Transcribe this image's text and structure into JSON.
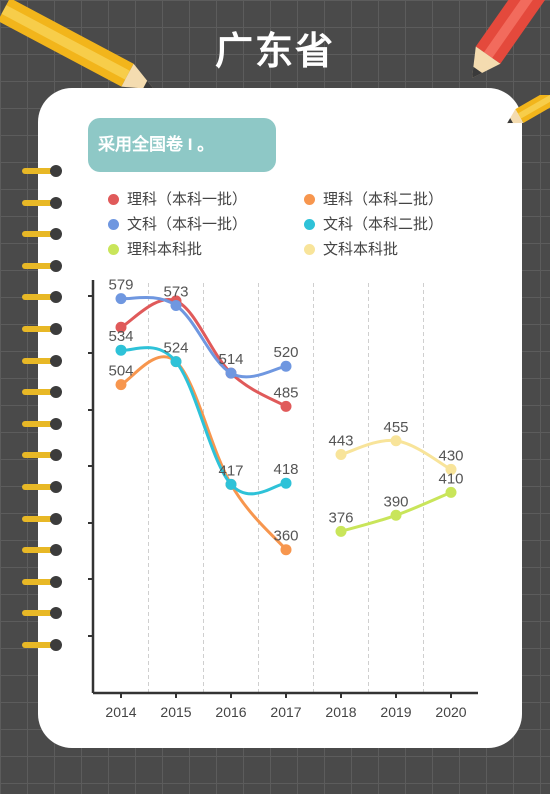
{
  "page": {
    "title": "广东省",
    "badge": "采用全国卷 I 。"
  },
  "colors": {
    "background": "#4a4a4a",
    "badge": "#8ec8c6",
    "ring": "#e8b826"
  },
  "decorations": [
    "pencil-icon",
    "pencil-icon",
    "pencil-icon"
  ],
  "chart_data": {
    "type": "line",
    "title": "",
    "xlabel": "",
    "ylabel": "",
    "legend_position": "top",
    "grid": "vertical-dashed",
    "ylim": [
      235,
      600
    ],
    "categories": [
      "2014",
      "2015",
      "2016",
      "2017",
      "2018",
      "2019",
      "2020"
    ],
    "series": [
      {
        "name": "理科（本科一批）",
        "color": "#e05a5a",
        "values": [
          554,
          577,
          514,
          485,
          null,
          null,
          null
        ],
        "labels": [
          null,
          null,
          null,
          "485",
          null,
          null,
          null
        ]
      },
      {
        "name": "理科（本科二批）",
        "color": "#f7964e",
        "values": [
          504,
          524,
          417,
          360,
          null,
          null,
          null
        ],
        "labels": [
          "504",
          null,
          null,
          "360",
          null,
          null,
          null
        ]
      },
      {
        "name": "文科（本科一批）",
        "color": "#6f97e0",
        "values": [
          579,
          573,
          514,
          520,
          null,
          null,
          null
        ],
        "labels": [
          "579",
          "573",
          "514",
          "520",
          null,
          null,
          null
        ]
      },
      {
        "name": "文科（本科二批）",
        "color": "#2ec2d8",
        "values": [
          534,
          524,
          417,
          418,
          null,
          null,
          null
        ],
        "labels": [
          "534",
          "524",
          "417",
          "418",
          null,
          null,
          null
        ]
      },
      {
        "name": "理科本科批",
        "color": "#c9e55a",
        "values": [
          null,
          null,
          null,
          null,
          376,
          390,
          410
        ],
        "labels": [
          null,
          null,
          null,
          null,
          "376",
          "390",
          "410"
        ]
      },
      {
        "name": "文科本科批",
        "color": "#f8e49a",
        "values": [
          null,
          null,
          null,
          null,
          443,
          455,
          430
        ],
        "labels": [
          null,
          null,
          null,
          null,
          "443",
          "455",
          "430"
        ]
      }
    ]
  }
}
